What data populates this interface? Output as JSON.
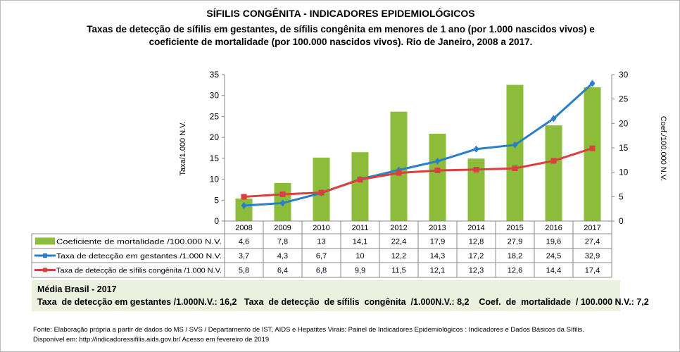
{
  "title": "SÍFILIS CONGÊNITA - INDICADORES EPIDEMIOLÓGICOS",
  "subtitle_line1": "Taxas de detecção de sífilis em gestantes, de sífilis congênita em menores de 1 ano (por 1.000 nascidos vivos) e",
  "subtitle_line2": "coeficiente de mortalidade (por 100.000 nascidos vivos). Rio de Janeiro, 2008 a 2017.",
  "chart_data": {
    "type": "bar+line",
    "categories": [
      "2008",
      "2009",
      "2010",
      "2011",
      "2012",
      "2013",
      "2014",
      "2015",
      "2016",
      "2017"
    ],
    "ylabel": "Taxa/1.000 N.V.",
    "ylim": [
      0,
      35
    ],
    "yticks": [
      0,
      5,
      10,
      15,
      20,
      25,
      30,
      35
    ],
    "y2label": "Coef./100.000 N.V.",
    "y2lim": [
      0,
      30
    ],
    "y2ticks": [
      0,
      5,
      10,
      15,
      20,
      25,
      30
    ],
    "series": [
      {
        "name": "Coeficiente de mortalidade /100.000 N.V.",
        "type": "bar",
        "axis": "right",
        "color": "#8cbd3a",
        "values": [
          4.6,
          7.8,
          13,
          14.1,
          22.4,
          17.9,
          12.8,
          27.9,
          19.6,
          27.4
        ],
        "labels": [
          "4,6",
          "7,8",
          "13",
          "14,1",
          "22,4",
          "17,9",
          "12,8",
          "27,9",
          "19,6",
          "27,4"
        ]
      },
      {
        "name": "Taxa de detecção em gestantes /1.000 N.V.",
        "type": "line",
        "axis": "left",
        "color": "#2a7fc9",
        "marker": "diamond",
        "values": [
          3.7,
          4.3,
          6.7,
          10,
          12.2,
          14.3,
          17.2,
          18.2,
          24.5,
          32.9
        ],
        "labels": [
          "3,7",
          "4,3",
          "6,7",
          "10",
          "12,2",
          "14,3",
          "17,2",
          "18,2",
          "24,5",
          "32,9"
        ]
      },
      {
        "name": "Taxa de detecção de sífilis congênita /1.000 N.V.",
        "type": "line",
        "axis": "left",
        "color": "#d9413f",
        "marker": "square",
        "values": [
          5.8,
          6.4,
          6.8,
          9.9,
          11.5,
          12.1,
          12.3,
          12.6,
          14.4,
          17.4
        ],
        "labels": [
          "5,8",
          "6,4",
          "6,8",
          "9,9",
          "11,5",
          "12,1",
          "12,3",
          "12,6",
          "14,4",
          "17,4"
        ]
      }
    ],
    "grid": false,
    "legend": "data-table"
  },
  "average": {
    "heading": "Média Brasil - 2017",
    "line": "Taxa  de detecção em gestantes /1.000N.V.: 16,2   Taxa  de detecção  de sífilis  congênita  /1.000N.V.: 8,2    Coef.  de  mortalidade  / 100.000 N.V.: 7,2"
  },
  "source": {
    "line1": "Fonte: Elaboração própria a partir de dados do MS / SVS / Departamento de IST, AIDS e Hepatites Virais:  Painel de Indicadores Epidemiológicos : Indicadores e Dados Básicos da Sífilis.",
    "line2": "Disponível em: http://indicadoressifilis.aids.gov.br/    Acesso em fevereiro de 2019"
  }
}
